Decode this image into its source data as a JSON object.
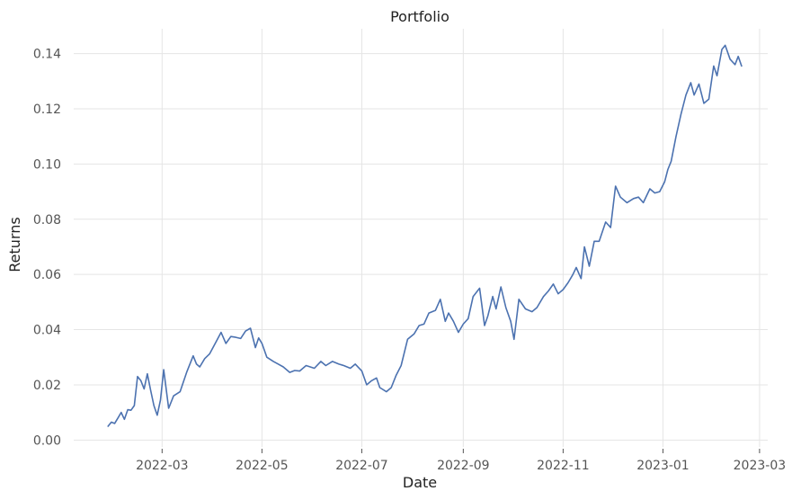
{
  "chart_data": {
    "type": "line",
    "title": "Portfolio",
    "xlabel": "Date",
    "ylabel": "Returns",
    "grid": true,
    "legend": "none",
    "colors": {
      "line": "#4c72b0",
      "grid": "#e5e5e5"
    },
    "xlim": [
      "2022-01-06",
      "2023-03-06"
    ],
    "ylim": [
      -0.0025,
      0.149
    ],
    "x_ticks": [
      {
        "date": "2022-03-01",
        "label": "2022-03"
      },
      {
        "date": "2022-05-01",
        "label": "2022-05"
      },
      {
        "date": "2022-07-01",
        "label": "2022-07"
      },
      {
        "date": "2022-09-01",
        "label": "2022-09"
      },
      {
        "date": "2022-11-01",
        "label": "2022-11"
      },
      {
        "date": "2023-01-01",
        "label": "2023-01"
      },
      {
        "date": "2023-03-01",
        "label": "2023-03"
      }
    ],
    "y_ticks": [
      {
        "value": 0.0,
        "label": "0.00"
      },
      {
        "value": 0.02,
        "label": "0.02"
      },
      {
        "value": 0.04,
        "label": "0.04"
      },
      {
        "value": 0.06,
        "label": "0.06"
      },
      {
        "value": 0.08,
        "label": "0.08"
      },
      {
        "value": 0.1,
        "label": "0.10"
      },
      {
        "value": 0.12,
        "label": "0.12"
      },
      {
        "value": 0.14,
        "label": "0.14"
      }
    ],
    "series": [
      {
        "x": [
          "2022-01-27",
          "2022-01-29",
          "2022-01-31",
          "2022-02-02",
          "2022-02-04",
          "2022-02-06",
          "2022-02-08",
          "2022-02-10",
          "2022-02-12",
          "2022-02-14",
          "2022-02-16",
          "2022-02-18",
          "2022-02-20",
          "2022-02-22",
          "2022-02-24",
          "2022-02-26",
          "2022-02-28",
          "2022-03-02",
          "2022-03-05",
          "2022-03-08",
          "2022-03-12",
          "2022-03-16",
          "2022-03-20",
          "2022-03-22",
          "2022-03-24",
          "2022-03-27",
          "2022-03-30",
          "2022-04-02",
          "2022-04-06",
          "2022-04-09",
          "2022-04-12",
          "2022-04-15",
          "2022-04-18",
          "2022-04-21",
          "2022-04-24",
          "2022-04-27",
          "2022-04-29",
          "2022-05-01",
          "2022-05-04",
          "2022-05-08",
          "2022-05-11",
          "2022-05-14",
          "2022-05-18",
          "2022-05-21",
          "2022-05-24",
          "2022-05-28",
          "2022-06-02",
          "2022-06-06",
          "2022-06-09",
          "2022-06-13",
          "2022-06-17",
          "2022-06-20",
          "2022-06-24",
          "2022-06-27",
          "2022-07-01",
          "2022-07-04",
          "2022-07-07",
          "2022-07-10",
          "2022-07-12",
          "2022-07-16",
          "2022-07-19",
          "2022-07-22",
          "2022-07-25",
          "2022-07-29",
          "2022-08-02",
          "2022-08-05",
          "2022-08-08",
          "2022-08-11",
          "2022-08-15",
          "2022-08-18",
          "2022-08-21",
          "2022-08-23",
          "2022-08-26",
          "2022-08-29",
          "2022-09-01",
          "2022-09-04",
          "2022-09-07",
          "2022-09-11",
          "2022-09-14",
          "2022-09-16",
          "2022-09-19",
          "2022-09-21",
          "2022-09-24",
          "2022-09-27",
          "2022-09-30",
          "2022-10-02",
          "2022-10-05",
          "2022-10-09",
          "2022-10-13",
          "2022-10-16",
          "2022-10-20",
          "2022-10-23",
          "2022-10-26",
          "2022-10-29",
          "2022-11-01",
          "2022-11-04",
          "2022-11-07",
          "2022-11-09",
          "2022-11-12",
          "2022-11-14",
          "2022-11-17",
          "2022-11-20",
          "2022-11-23",
          "2022-11-27",
          "2022-11-30",
          "2022-12-03",
          "2022-12-06",
          "2022-12-10",
          "2022-12-14",
          "2022-12-17",
          "2022-12-20",
          "2022-12-24",
          "2022-12-27",
          "2022-12-30",
          "2023-01-02",
          "2023-01-04",
          "2023-01-06",
          "2023-01-09",
          "2023-01-12",
          "2023-01-15",
          "2023-01-18",
          "2023-01-20",
          "2023-01-23",
          "2023-01-26",
          "2023-01-29",
          "2023-02-01",
          "2023-02-03",
          "2023-02-06",
          "2023-02-08",
          "2023-02-11",
          "2023-02-14",
          "2023-02-16",
          "2023-02-18"
        ],
        "y": [
          0.005,
          0.0065,
          0.006,
          0.008,
          0.01,
          0.0075,
          0.011,
          0.0108,
          0.0125,
          0.023,
          0.0215,
          0.0185,
          0.024,
          0.018,
          0.0125,
          0.009,
          0.0145,
          0.0255,
          0.0115,
          0.016,
          0.0175,
          0.0245,
          0.0305,
          0.0275,
          0.0265,
          0.0295,
          0.0312,
          0.0345,
          0.039,
          0.035,
          0.0375,
          0.0372,
          0.0368,
          0.0395,
          0.0405,
          0.0335,
          0.037,
          0.035,
          0.03,
          0.0285,
          0.0275,
          0.0265,
          0.0245,
          0.0252,
          0.025,
          0.027,
          0.026,
          0.0285,
          0.027,
          0.0285,
          0.0275,
          0.027,
          0.026,
          0.0275,
          0.025,
          0.02,
          0.0215,
          0.0225,
          0.019,
          0.0175,
          0.019,
          0.0235,
          0.027,
          0.0365,
          0.0385,
          0.0415,
          0.042,
          0.046,
          0.047,
          0.051,
          0.043,
          0.046,
          0.043,
          0.039,
          0.042,
          0.044,
          0.052,
          0.055,
          0.0415,
          0.045,
          0.052,
          0.0475,
          0.0555,
          0.048,
          0.043,
          0.0365,
          0.051,
          0.0475,
          0.0465,
          0.048,
          0.052,
          0.054,
          0.0565,
          0.053,
          0.0545,
          0.057,
          0.06,
          0.0625,
          0.0585,
          0.07,
          0.063,
          0.072,
          0.072,
          0.079,
          0.077,
          0.092,
          0.088,
          0.086,
          0.0875,
          0.088,
          0.086,
          0.091,
          0.0895,
          0.09,
          0.0935,
          0.098,
          0.101,
          0.11,
          0.118,
          0.125,
          0.1295,
          0.125,
          0.129,
          0.122,
          0.1235,
          0.1355,
          0.132,
          0.1415,
          0.143,
          0.138,
          0.136,
          0.139,
          0.1355
        ]
      }
    ]
  }
}
